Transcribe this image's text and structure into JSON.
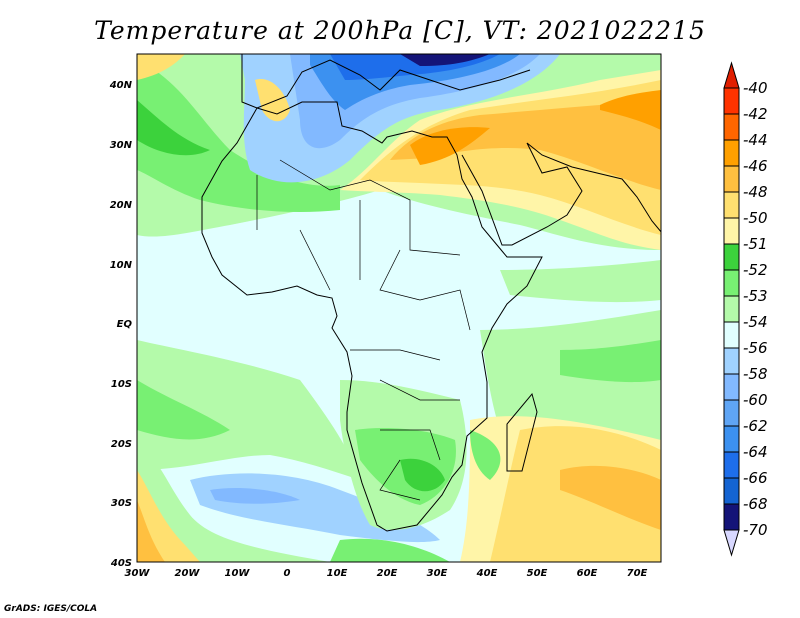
{
  "title": "Temperature at 200hPa [C], VT: 2021022215",
  "credit": "GrADS: IGES/COLA",
  "lat_labels": [
    "40N",
    "30N",
    "20N",
    "10N",
    "EQ",
    "10S",
    "20S",
    "30S",
    "40S"
  ],
  "lon_labels": [
    "30W",
    "20W",
    "10W",
    "0",
    "10E",
    "20E",
    "30E",
    "40E",
    "50E",
    "60E",
    "70E"
  ],
  "colorbar": {
    "levels": [
      "-40",
      "-42",
      "-44",
      "-46",
      "-48",
      "-50",
      "-51",
      "-52",
      "-53",
      "-54",
      "-56",
      "-58",
      "-60",
      "-62",
      "-64",
      "-66",
      "-68",
      "-70"
    ],
    "colors": [
      "#ff3300",
      "#ff6600",
      "#ffa000",
      "#ffc040",
      "#ffe070",
      "#fff5a8",
      "#3cd23c",
      "#78f073",
      "#b4faaa",
      "#e1ffff",
      "#a0d2ff",
      "#82b9ff",
      "#5fa5f5",
      "#3c91f0",
      "#1e6eeb",
      "#1464d2",
      "#141478"
    ],
    "above_color": "#e01e00",
    "below_color": "#d8d8ff"
  }
}
